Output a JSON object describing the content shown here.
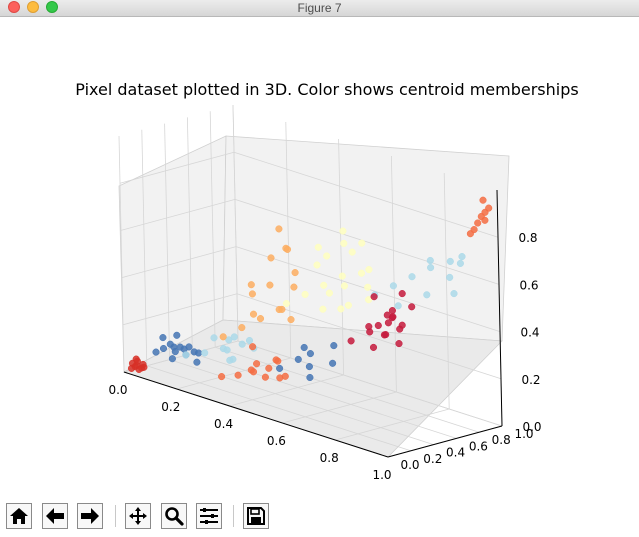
{
  "window": {
    "title": "Figure 7"
  },
  "chart_data": {
    "type": "scatter3d",
    "title": "Pixel dataset plotted in 3D. Color shows centroid memberships",
    "xlabel": "",
    "ylabel": "",
    "zlabel": "",
    "x_ticks": [
      "0.0",
      "0.2",
      "0.4",
      "0.6",
      "0.8",
      "1.0"
    ],
    "y_ticks": [
      "0.0",
      "0.2",
      "0.4",
      "0.6",
      "0.8",
      "1.0"
    ],
    "z_ticks": [
      "0.0",
      "0.2",
      "0.4",
      "0.6",
      "0.8"
    ],
    "xlim": [
      0,
      1
    ],
    "ylim": [
      0,
      1
    ],
    "zlim": [
      0,
      1
    ],
    "grid": true,
    "clusters": [
      {
        "color": "#d73027",
        "x": [
          0.02,
          0.03,
          0.04,
          0.05,
          0.03,
          0.02,
          0.04,
          0.06,
          0.05,
          0.03
        ],
        "y": [
          0.02,
          0.03,
          0.02,
          0.04,
          0.05,
          0.03,
          0.04,
          0.03,
          0.06,
          0.04
        ],
        "z": [
          0.02,
          0.03,
          0.04,
          0.03,
          0.05,
          0.04,
          0.02,
          0.05,
          0.03,
          0.06
        ]
      },
      {
        "color": "#4575b4",
        "x": [
          0.08,
          0.1,
          0.12,
          0.14,
          0.1,
          0.15,
          0.18,
          0.12,
          0.09,
          0.16,
          0.2,
          0.13,
          0.11,
          0.17,
          0.19,
          0.55,
          0.6,
          0.62,
          0.66,
          0.58,
          0.63,
          0.7,
          0.68
        ],
        "y": [
          0.1,
          0.12,
          0.15,
          0.12,
          0.18,
          0.2,
          0.16,
          0.22,
          0.14,
          0.25,
          0.18,
          0.17,
          0.2,
          0.14,
          0.22,
          0.1,
          0.15,
          0.2,
          0.12,
          0.25,
          0.18,
          0.22,
          0.28
        ],
        "z": [
          0.1,
          0.12,
          0.08,
          0.14,
          0.13,
          0.1,
          0.15,
          0.12,
          0.16,
          0.11,
          0.09,
          0.18,
          0.1,
          0.14,
          0.12,
          0.2,
          0.25,
          0.22,
          0.3,
          0.28,
          0.18,
          0.26,
          0.32
        ]
      },
      {
        "color": "#abd9e9",
        "x": [
          0.15,
          0.2,
          0.25,
          0.3,
          0.22,
          0.28,
          0.32,
          0.18,
          0.26,
          0.24,
          0.35,
          0.3,
          0.7,
          0.75,
          0.8,
          0.85,
          0.9,
          0.95,
          0.88,
          0.82,
          0.92,
          0.78,
          0.86,
          0.94
        ],
        "y": [
          0.2,
          0.25,
          0.3,
          0.35,
          0.4,
          0.28,
          0.22,
          0.38,
          0.33,
          0.42,
          0.3,
          0.45,
          0.6,
          0.65,
          0.7,
          0.75,
          0.8,
          0.72,
          0.68,
          0.78,
          0.85,
          0.62,
          0.9,
          0.82
        ],
        "z": [
          0.1,
          0.12,
          0.15,
          0.18,
          0.12,
          0.2,
          0.14,
          0.16,
          0.1,
          0.18,
          0.22,
          0.15,
          0.5,
          0.55,
          0.6,
          0.65,
          0.62,
          0.58,
          0.7,
          0.52,
          0.68,
          0.48,
          0.66,
          0.72
        ]
      },
      {
        "color": "#fdae61",
        "x": [
          0.25,
          0.3,
          0.35,
          0.4,
          0.28,
          0.33,
          0.38,
          0.45,
          0.42,
          0.36,
          0.3,
          0.48,
          0.4,
          0.34,
          0.44,
          0.38
        ],
        "y": [
          0.3,
          0.35,
          0.4,
          0.45,
          0.5,
          0.38,
          0.42,
          0.36,
          0.55,
          0.48,
          0.44,
          0.4,
          0.52,
          0.6,
          0.46,
          0.58
        ],
        "z": [
          0.2,
          0.25,
          0.3,
          0.35,
          0.28,
          0.4,
          0.45,
          0.38,
          0.5,
          0.55,
          0.42,
          0.48,
          0.6,
          0.65,
          0.32,
          0.58
        ]
      },
      {
        "color": "#f46d43",
        "x": [
          0.35,
          0.4,
          0.45,
          0.5,
          0.42,
          0.48,
          0.55,
          0.52,
          0.46,
          0.58,
          0.44,
          0.5,
          0.93,
          0.95,
          0.96,
          0.97,
          0.98,
          0.94,
          0.96,
          0.95
        ],
        "y": [
          0.05,
          0.08,
          0.1,
          0.12,
          0.15,
          0.06,
          0.1,
          0.14,
          0.18,
          0.08,
          0.12,
          0.2,
          0.92,
          0.94,
          0.95,
          0.96,
          0.97,
          0.93,
          0.98,
          0.99
        ],
        "z": [
          0.1,
          0.12,
          0.15,
          0.18,
          0.14,
          0.2,
          0.16,
          0.22,
          0.12,
          0.18,
          0.25,
          0.2,
          0.8,
          0.85,
          0.88,
          0.9,
          0.92,
          0.82,
          0.86,
          0.94
        ]
      },
      {
        "color": "#ffffbf",
        "x": [
          0.45,
          0.5,
          0.55,
          0.6,
          0.52,
          0.58,
          0.62,
          0.66,
          0.48,
          0.56,
          0.64,
          0.7,
          0.54,
          0.6,
          0.68,
          0.72,
          0.5,
          0.58,
          0.62,
          0.66
        ],
        "y": [
          0.4,
          0.45,
          0.5,
          0.55,
          0.6,
          0.48,
          0.52,
          0.58,
          0.62,
          0.66,
          0.44,
          0.54,
          0.7,
          0.64,
          0.6,
          0.5,
          0.56,
          0.42,
          0.68,
          0.46
        ],
        "z": [
          0.4,
          0.45,
          0.5,
          0.55,
          0.6,
          0.48,
          0.52,
          0.58,
          0.62,
          0.66,
          0.44,
          0.54,
          0.7,
          0.64,
          0.6,
          0.5,
          0.56,
          0.42,
          0.68,
          0.46
        ]
      },
      {
        "color": "#c51b3d",
        "x": [
          0.65,
          0.7,
          0.75,
          0.8,
          0.72,
          0.78,
          0.82,
          0.68,
          0.76,
          0.74,
          0.84,
          0.7,
          0.79,
          0.73,
          0.81,
          0.77,
          0.71,
          0.75
        ],
        "y": [
          0.5,
          0.55,
          0.6,
          0.52,
          0.58,
          0.62,
          0.56,
          0.64,
          0.54,
          0.66,
          0.6,
          0.58,
          0.5,
          0.62,
          0.56,
          0.68,
          0.52,
          0.64
        ],
        "z": [
          0.3,
          0.35,
          0.4,
          0.45,
          0.38,
          0.32,
          0.42,
          0.48,
          0.36,
          0.44,
          0.5,
          0.28,
          0.46,
          0.34,
          0.4,
          0.52,
          0.38,
          0.42
        ]
      }
    ]
  },
  "toolbar": {
    "buttons": [
      {
        "icon": "home-icon"
      },
      {
        "icon": "back-arrow-icon"
      },
      {
        "icon": "forward-arrow-icon"
      },
      {
        "icon": "pan-move-icon"
      },
      {
        "icon": "zoom-magnifier-icon"
      },
      {
        "icon": "configure-subplots-icon"
      },
      {
        "icon": "save-floppy-icon"
      }
    ]
  }
}
